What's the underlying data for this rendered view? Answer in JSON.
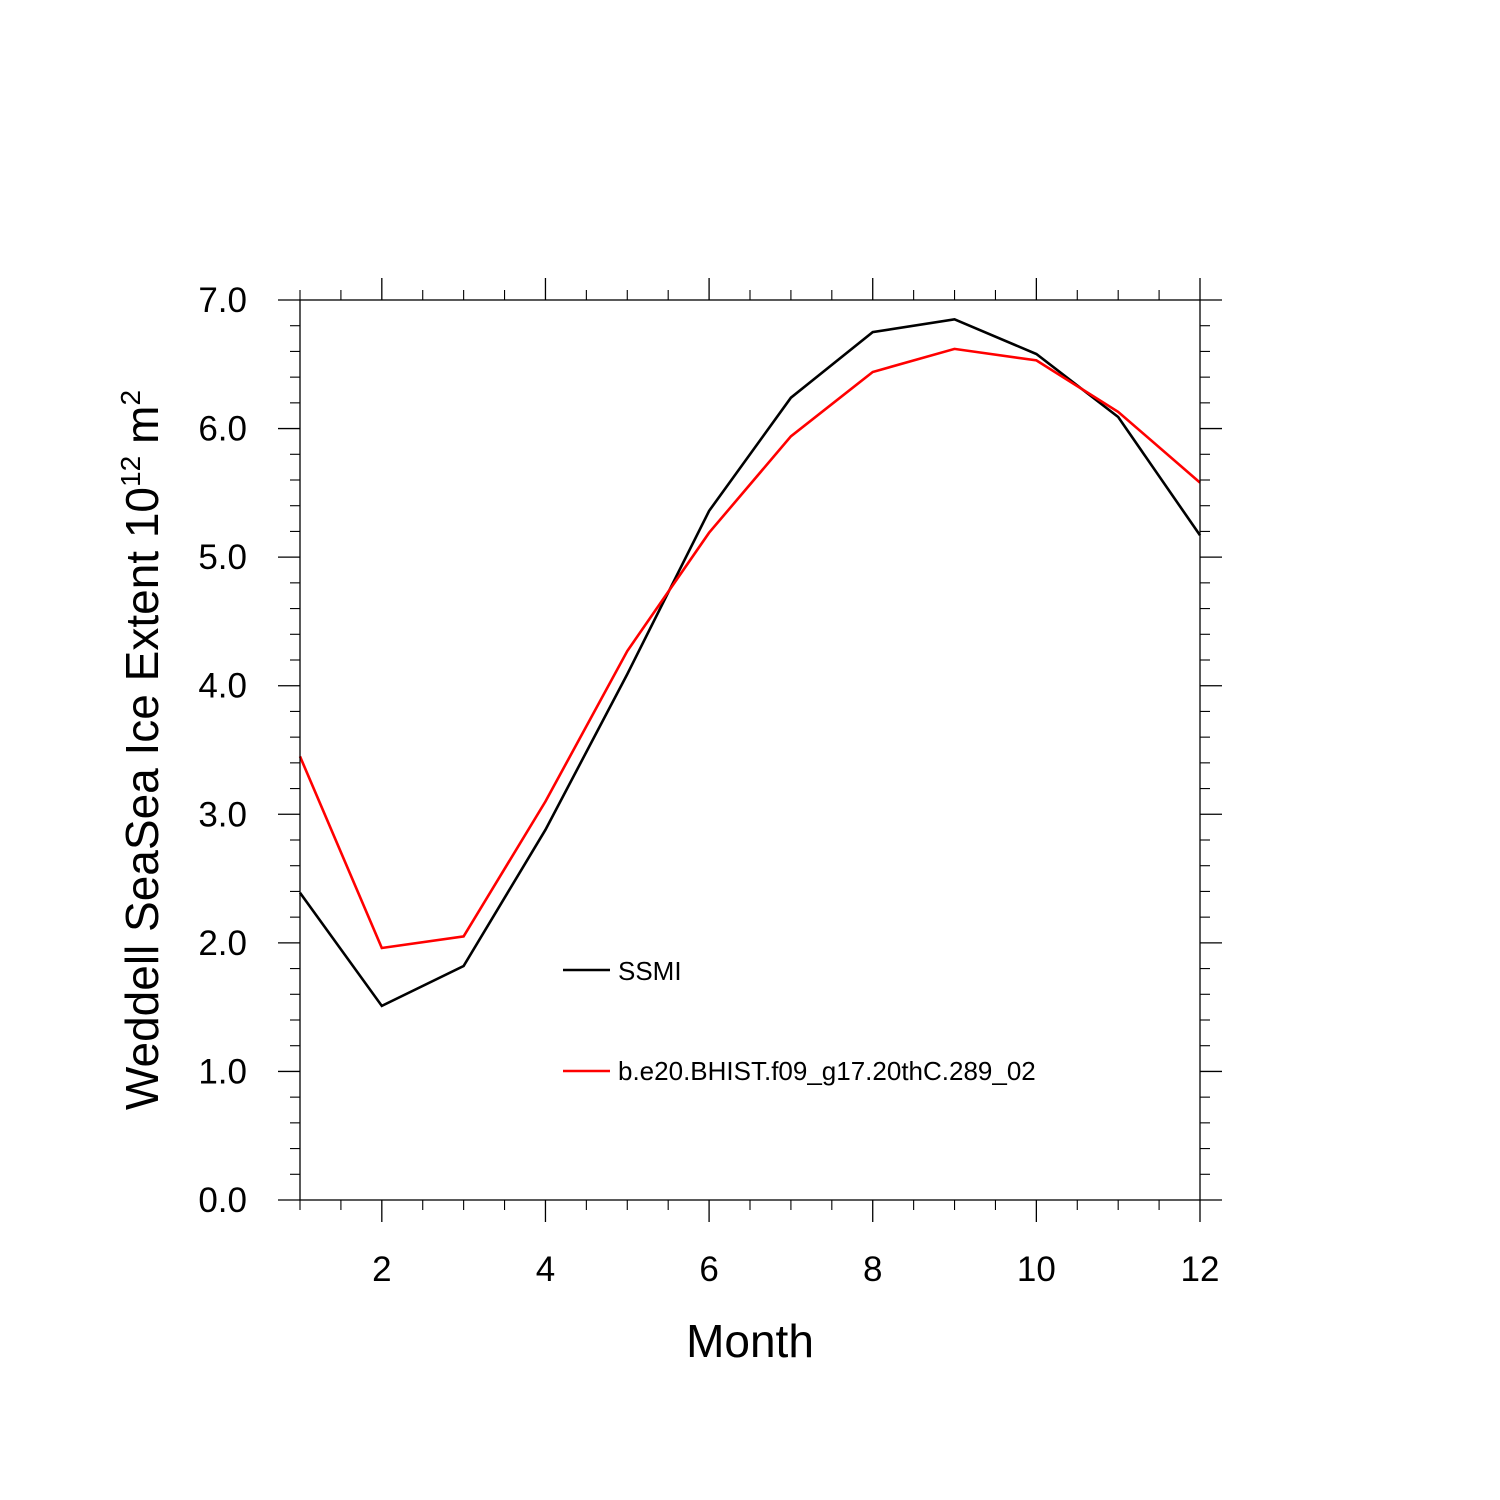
{
  "chart_data": {
    "type": "line",
    "xlabel": "Month",
    "ylabel": {
      "prefix": "Weddell SeaSea Ice Extent 10",
      "exponent": "12",
      "unit": "m",
      "unit_exponent": "2"
    },
    "xlim": [
      1,
      12
    ],
    "ylim": [
      0,
      7
    ],
    "x_ticks": [
      2,
      4,
      6,
      8,
      10,
      12
    ],
    "x_tick_labels": [
      "2",
      "4",
      "6",
      "8",
      "10",
      "12"
    ],
    "y_ticks": [
      0,
      1,
      2,
      3,
      4,
      5,
      6,
      7
    ],
    "y_tick_labels": [
      "0.0",
      "1.0",
      "2.0",
      "3.0",
      "4.0",
      "5.0",
      "6.0",
      "7.0"
    ],
    "grid": false,
    "legend_position": "inside-center",
    "x": [
      1,
      2,
      3,
      4,
      5,
      6,
      7,
      8,
      9,
      10,
      11,
      12
    ],
    "series": [
      {
        "name": "SSMI",
        "color": "#000000",
        "values": [
          2.39,
          1.51,
          1.82,
          2.88,
          4.09,
          5.36,
          6.24,
          6.75,
          6.85,
          6.58,
          6.09,
          5.17
        ]
      },
      {
        "name": "b.e20.BHIST.f09_g17.20thC.289_02",
        "color": "#ff0000",
        "values": [
          3.45,
          1.96,
          2.05,
          3.1,
          4.27,
          5.19,
          5.94,
          6.44,
          6.62,
          6.53,
          6.13,
          5.58
        ]
      }
    ]
  }
}
